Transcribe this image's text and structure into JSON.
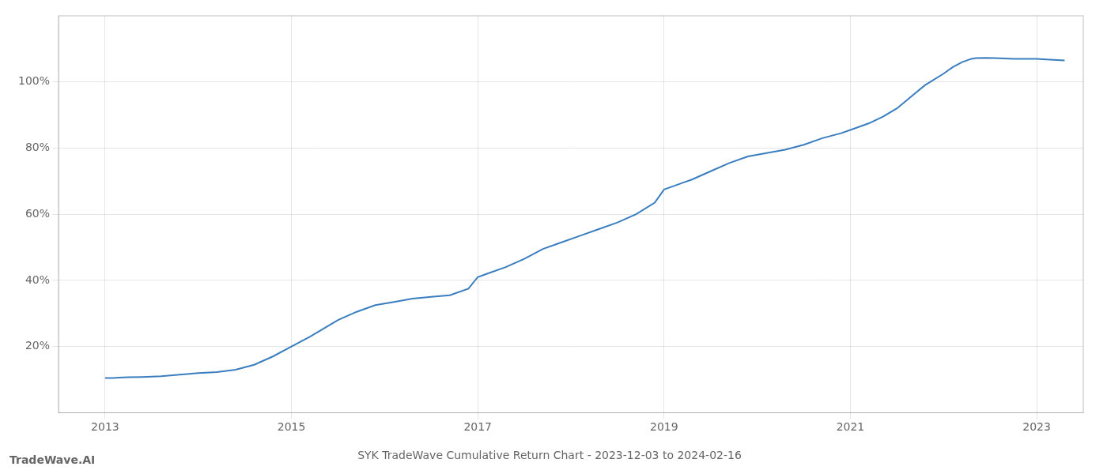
{
  "chart_data": {
    "type": "line",
    "title": "SYK TradeWave Cumulative Return Chart - 2023-12-03 to 2024-02-16",
    "annotations": [
      "TradeWave.AI"
    ],
    "color": "#3a7ebf",
    "grid": true,
    "xlim": [
      2012.5,
      2023.5
    ],
    "ylim": [
      0,
      120
    ],
    "xticks": [
      2013,
      2015,
      2017,
      2019,
      2021,
      2023
    ],
    "yticks": [
      {
        "value": 20,
        "label": "20%"
      },
      {
        "value": 40,
        "label": "40%"
      },
      {
        "value": 60,
        "label": "60%"
      },
      {
        "value": 80,
        "label": "80%"
      },
      {
        "value": 100,
        "label": "100%"
      }
    ],
    "x": [
      2013.0,
      2013.08,
      2013.15,
      2013.25,
      2013.4,
      2013.6,
      2013.8,
      2014.0,
      2014.2,
      2014.4,
      2014.6,
      2014.8,
      2015.0,
      2015.1,
      2015.2,
      2015.35,
      2015.5,
      2015.7,
      2015.9,
      2016.1,
      2016.3,
      2016.5,
      2016.7,
      2016.9,
      2017.0,
      2017.1,
      2017.3,
      2017.5,
      2017.7,
      2017.9,
      2018.1,
      2018.3,
      2018.5,
      2018.7,
      2018.9,
      2019.0,
      2019.1,
      2019.2,
      2019.3,
      2019.5,
      2019.7,
      2019.9,
      2020.1,
      2020.3,
      2020.5,
      2020.7,
      2020.9,
      2021.0,
      2021.1,
      2021.2,
      2021.35,
      2021.5,
      2021.65,
      2021.8,
      2022.0,
      2022.1,
      2022.2,
      2022.3,
      2022.35,
      2022.45,
      2022.55,
      2022.65,
      2022.75,
      2022.85,
      2023.0,
      2023.1,
      2023.3
    ],
    "values": [
      10.5,
      10.5,
      10.6,
      10.7,
      10.8,
      11.0,
      11.5,
      12.0,
      12.3,
      13.0,
      14.5,
      17.0,
      20.0,
      21.5,
      23.0,
      25.5,
      28.0,
      30.5,
      32.5,
      33.5,
      34.5,
      35.0,
      35.5,
      37.5,
      41.0,
      42.0,
      44.0,
      46.5,
      49.5,
      51.5,
      53.5,
      55.5,
      57.5,
      60.0,
      63.5,
      67.5,
      68.5,
      69.5,
      70.5,
      73.0,
      75.5,
      77.5,
      78.5,
      79.5,
      81.0,
      83.0,
      84.5,
      85.5,
      86.5,
      87.5,
      89.5,
      92.0,
      95.5,
      99.0,
      102.5,
      104.5,
      106.0,
      107.0,
      107.2,
      107.3,
      107.2,
      107.1,
      107.0,
      107.0,
      107.0,
      106.8,
      106.5
    ]
  }
}
